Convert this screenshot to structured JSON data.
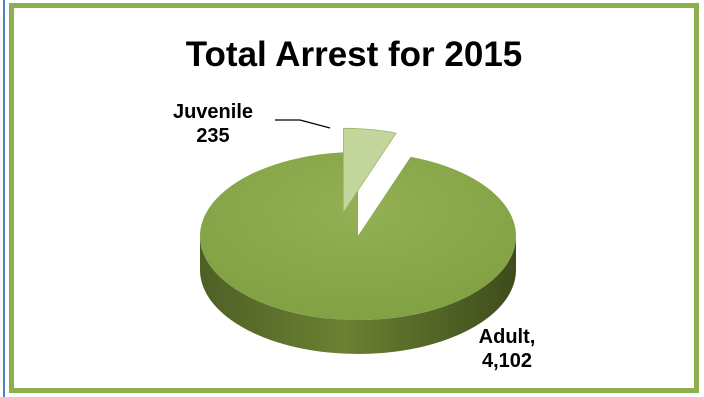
{
  "chart_data": {
    "type": "pie",
    "title": "Total Arrest for 2015",
    "slices": [
      {
        "name": "Adult",
        "value": 4102,
        "label_line1": "Adult,",
        "label_line2": "4,102",
        "color": "#8aa54c"
      },
      {
        "name": "Juvenile",
        "value": 235,
        "label_line1": "Juvenile",
        "label_line2": "235",
        "color": "#c3d69b"
      }
    ],
    "style": "3d-exploded",
    "legend": "none"
  },
  "colors": {
    "frame": "#8db04e",
    "left_strip": "#4f81bd"
  }
}
